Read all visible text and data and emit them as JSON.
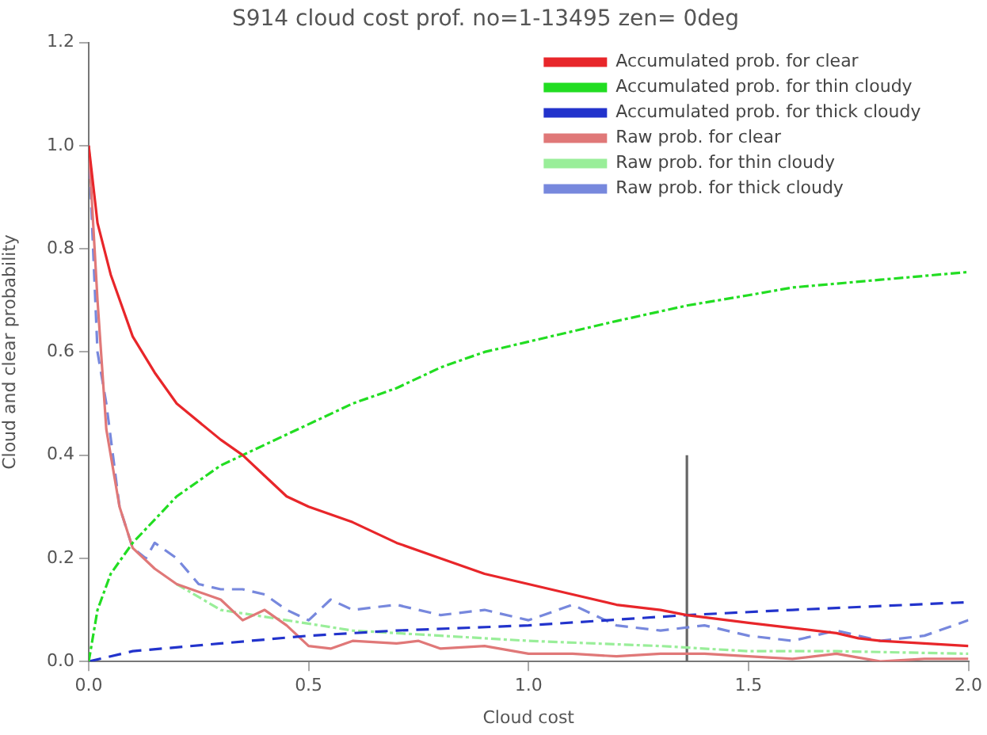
{
  "chart_data": {
    "type": "line",
    "title": "S914 cloud cost prof. no=1-13495 zen= 0deg",
    "xlabel": "Cloud cost",
    "ylabel": "Cloud and clear probability",
    "xlim": [
      0,
      2
    ],
    "xticks": [
      {
        "value": 0,
        "label": "0.0"
      },
      {
        "value": 0.5,
        "label": "0.5"
      },
      {
        "value": 1,
        "label": "1.0"
      },
      {
        "value": 1.5,
        "label": "1.5"
      },
      {
        "value": 2,
        "label": "2.0"
      }
    ],
    "ylim": [
      0,
      1.2
    ],
    "yticks": [
      {
        "value": 0,
        "label": "0.0"
      },
      {
        "value": 0.2,
        "label": "0.2"
      },
      {
        "value": 0.4,
        "label": "0.4"
      },
      {
        "value": 0.6,
        "label": "0.6"
      },
      {
        "value": 0.8,
        "label": "0.8"
      },
      {
        "value": 1,
        "label": "1.0"
      },
      {
        "value": 1.2,
        "label": "1.2"
      }
    ],
    "grid": false,
    "legend": "top right",
    "marker": "none",
    "series": [
      {
        "name": "Accumulated prob. for clear",
        "color": "#e8262a",
        "line_style": "solid",
        "x": [
          0,
          0.02,
          0.05,
          0.1,
          0.15,
          0.2,
          0.3,
          0.35,
          0.4,
          0.45,
          0.5,
          0.6,
          0.7,
          0.8,
          0.9,
          1.0,
          1.1,
          1.2,
          1.3,
          1.36,
          1.5,
          1.6,
          1.7,
          1.75,
          1.8,
          1.9,
          2.0
        ],
        "values": [
          1.0,
          0.85,
          0.75,
          0.63,
          0.56,
          0.5,
          0.43,
          0.4,
          0.36,
          0.32,
          0.3,
          0.27,
          0.23,
          0.2,
          0.17,
          0.15,
          0.13,
          0.11,
          0.1,
          0.09,
          0.075,
          0.065,
          0.055,
          0.045,
          0.04,
          0.035,
          0.03
        ]
      },
      {
        "name": "Accumulated prob. for thin cloudy",
        "color": "#22dd22",
        "line_style": "dashdot",
        "x": [
          0,
          0.02,
          0.05,
          0.1,
          0.2,
          0.3,
          0.35,
          0.5,
          0.6,
          0.7,
          0.8,
          0.9,
          1.0,
          1.2,
          1.36,
          1.5,
          1.6,
          1.8,
          2.0
        ],
        "values": [
          0,
          0.1,
          0.17,
          0.23,
          0.32,
          0.38,
          0.4,
          0.46,
          0.5,
          0.53,
          0.57,
          0.6,
          0.62,
          0.66,
          0.69,
          0.71,
          0.725,
          0.74,
          0.755
        ]
      },
      {
        "name": "Accumulated prob. for thick cloudy",
        "color": "#2233cc",
        "line_style": "dashed",
        "x": [
          0,
          0.1,
          0.3,
          0.5,
          0.7,
          1.0,
          1.36,
          1.6,
          2.0
        ],
        "values": [
          0,
          0.02,
          0.035,
          0.05,
          0.06,
          0.07,
          0.09,
          0.1,
          0.115
        ]
      },
      {
        "name": "Raw prob. for clear",
        "color": "#e07878",
        "line_style": "solid",
        "x": [
          0,
          0.02,
          0.04,
          0.07,
          0.1,
          0.15,
          0.2,
          0.3,
          0.35,
          0.4,
          0.45,
          0.5,
          0.55,
          0.6,
          0.7,
          0.75,
          0.8,
          0.9,
          1.0,
          1.1,
          1.2,
          1.3,
          1.4,
          1.5,
          1.6,
          1.7,
          1.8,
          1.9,
          2.0
        ],
        "values": [
          1.0,
          0.7,
          0.45,
          0.3,
          0.22,
          0.18,
          0.15,
          0.12,
          0.08,
          0.1,
          0.07,
          0.03,
          0.025,
          0.04,
          0.035,
          0.04,
          0.025,
          0.03,
          0.015,
          0.015,
          0.01,
          0.015,
          0.015,
          0.01,
          0.005,
          0.015,
          0.0,
          0.005,
          0.005
        ]
      },
      {
        "name": "Raw prob. for thin cloudy",
        "color": "#99ee99",
        "line_style": "dashdot",
        "x": [
          0.2,
          0.3,
          0.45,
          0.6,
          0.8,
          1.0,
          1.3,
          1.5,
          1.7,
          2.0
        ],
        "values": [
          0.15,
          0.1,
          0.08,
          0.06,
          0.05,
          0.04,
          0.03,
          0.02,
          0.02,
          0.015
        ]
      },
      {
        "name": "Raw prob. for thick cloudy",
        "color": "#7788dd",
        "line_style": "dashed",
        "x": [
          0,
          0.02,
          0.04,
          0.07,
          0.1,
          0.13,
          0.15,
          0.2,
          0.25,
          0.3,
          0.35,
          0.4,
          0.45,
          0.5,
          0.55,
          0.6,
          0.7,
          0.8,
          0.9,
          1.0,
          1.1,
          1.2,
          1.3,
          1.4,
          1.5,
          1.6,
          1.7,
          1.8,
          1.9,
          2.0
        ],
        "values": [
          1.0,
          0.6,
          0.5,
          0.3,
          0.22,
          0.2,
          0.23,
          0.2,
          0.15,
          0.14,
          0.14,
          0.13,
          0.1,
          0.08,
          0.12,
          0.1,
          0.11,
          0.09,
          0.1,
          0.08,
          0.11,
          0.07,
          0.06,
          0.07,
          0.05,
          0.04,
          0.06,
          0.04,
          0.05,
          0.08
        ]
      },
      {
        "color": "#666666",
        "line_style": "solid",
        "x": [
          1.36,
          1.36
        ],
        "values": [
          0,
          0.4
        ]
      }
    ]
  }
}
